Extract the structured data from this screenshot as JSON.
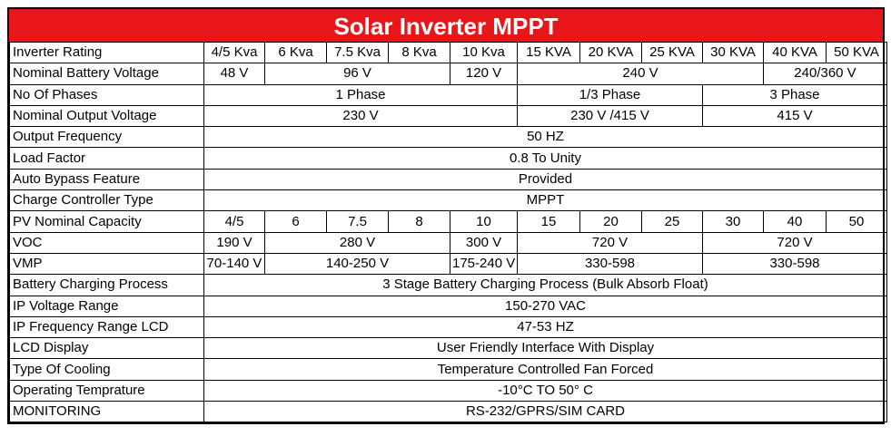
{
  "title": "Solar Inverter MPPT",
  "rows": {
    "rating": {
      "label": "Inverter Rating",
      "values": [
        "4/5 Kva",
        "6 Kva",
        "7.5 Kva",
        "8 Kva",
        "10 Kva",
        "15 KVA",
        "20 KVA",
        "25 KVA",
        "30 KVA",
        "40 KVA",
        "50 KVA"
      ]
    },
    "battery": {
      "label": "Nominal Battery Voltage",
      "values": [
        "48 V",
        "96 V",
        "120 V",
        "240 V",
        "240/360 V"
      ]
    },
    "phases": {
      "label": "No Of Phases",
      "values": [
        "1 Phase",
        "1/3 Phase",
        "3 Phase"
      ]
    },
    "output_voltage": {
      "label": "Nominal Output Voltage",
      "values": [
        "230 V",
        "230 V /415 V",
        "415 V"
      ]
    },
    "frequency": {
      "label": "Output Frequency",
      "value": "50 HZ"
    },
    "load_factor": {
      "label": "Load Factor",
      "value": "0.8 To Unity"
    },
    "bypass": {
      "label": "Auto Bypass Feature",
      "value": "Provided"
    },
    "charge_ctrl": {
      "label": "Charge Controller Type",
      "value": "MPPT"
    },
    "pv": {
      "label": "PV Nominal Capacity",
      "values": [
        "4/5",
        "6",
        "7.5",
        "8",
        "10",
        "15",
        "20",
        "25",
        "30",
        "40",
        "50"
      ]
    },
    "voc": {
      "label": "VOC",
      "values": [
        "190 V",
        "280 V",
        "300 V",
        "720 V",
        "720 V"
      ]
    },
    "vmp": {
      "label": "VMP",
      "values": [
        "70-140 V",
        "140-250 V",
        "175-240 V",
        "330-598",
        "330-598"
      ]
    },
    "charging": {
      "label": "Battery Charging Process",
      "value": "3 Stage Battery Charging Process (Bulk Absorb Float)"
    },
    "ip_voltage": {
      "label": "IP Voltage Range",
      "value": "150-270 VAC"
    },
    "ip_freq": {
      "label": "IP Frequency Range LCD",
      "value": "47-53 HZ"
    },
    "lcd": {
      "label": "LCD Display",
      "value": "User Friendly Interface With Display"
    },
    "cooling": {
      "label": "Type Of Cooling",
      "value": "Temperature Controlled Fan Forced"
    },
    "temp": {
      "label": "Operating Temprature",
      "value": "-10°C TO 50° C"
    },
    "monitoring": {
      "label": "MONITORING",
      "value": "RS-232/GPRS/SIM CARD"
    }
  }
}
